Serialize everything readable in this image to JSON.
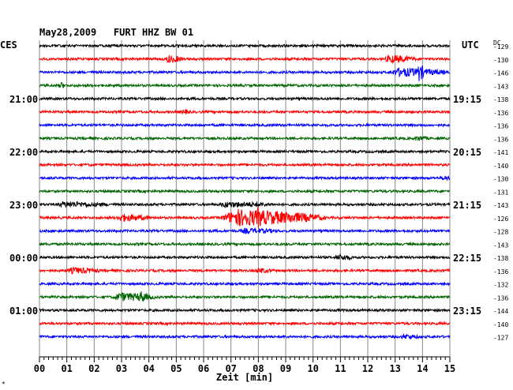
{
  "chart_data": {
    "type": "line",
    "title": "May28,2009   FURT HHZ BW 01",
    "left_axis_label": "CES",
    "right_axis_label": "UTC",
    "right_dc_label": "DC",
    "xlabel": "Zeit [min]",
    "xlim": [
      0,
      15
    ],
    "x_ticks": [
      "00",
      "01",
      "02",
      "03",
      "04",
      "05",
      "06",
      "07",
      "08",
      "09",
      "10",
      "11",
      "12",
      "13",
      "14",
      "15"
    ],
    "colors": [
      "#000000",
      "#ff0000",
      "#0000ff",
      "#006400"
    ],
    "left_time_labels": [
      {
        "trace": 4,
        "label": "21:00"
      },
      {
        "trace": 8,
        "label": "22:00"
      },
      {
        "trace": 12,
        "label": "23:00"
      },
      {
        "trace": 16,
        "label": "00:00"
      },
      {
        "trace": 20,
        "label": "01:00"
      }
    ],
    "right_time_labels": [
      {
        "trace": 4,
        "label": "19:15"
      },
      {
        "trace": 8,
        "label": "20:15"
      },
      {
        "trace": 12,
        "label": "21:15"
      },
      {
        "trace": 16,
        "label": "22:15"
      },
      {
        "trace": 20,
        "label": "23:15"
      }
    ],
    "dc_offsets": [
      "-129",
      "-130",
      "-146",
      "-143",
      "-138",
      "-136",
      "-136",
      "-136",
      "-141",
      "-140",
      "-130",
      "-131",
      "-143",
      "-126",
      "-128",
      "-143",
      "-138",
      "-136",
      "-132",
      "-136",
      "-144",
      "-140",
      "-127"
    ],
    "events": [
      {
        "trace": 1,
        "start_min": 4.6,
        "end_min": 5.3,
        "amplitude": 0.5
      },
      {
        "trace": 1,
        "start_min": 12.6,
        "end_min": 13.8,
        "amplitude": 0.55
      },
      {
        "trace": 2,
        "start_min": 12.8,
        "end_min": 15.0,
        "amplitude": 0.6
      },
      {
        "trace": 2,
        "start_min": 13.8,
        "end_min": 14.1,
        "amplitude": 1.5
      },
      {
        "trace": 3,
        "start_min": 0.7,
        "end_min": 0.95,
        "amplitude": 0.45
      },
      {
        "trace": 5,
        "start_min": 5.2,
        "end_min": 5.5,
        "amplitude": 0.3
      },
      {
        "trace": 7,
        "start_min": 13.7,
        "end_min": 14.2,
        "amplitude": 0.3
      },
      {
        "trace": 10,
        "start_min": 14.7,
        "end_min": 15.0,
        "amplitude": 0.3
      },
      {
        "trace": 12,
        "start_min": 0.6,
        "end_min": 2.6,
        "amplitude": 0.35
      },
      {
        "trace": 12,
        "start_min": 6.5,
        "end_min": 8.6,
        "amplitude": 0.35
      },
      {
        "trace": 13,
        "start_min": 2.8,
        "end_min": 4.1,
        "amplitude": 0.5
      },
      {
        "trace": 13,
        "start_min": 6.6,
        "end_min": 10.5,
        "amplitude": 1.3
      },
      {
        "trace": 13,
        "start_min": 7.9,
        "end_min": 8.3,
        "amplitude": 1.8
      },
      {
        "trace": 14,
        "start_min": 7.3,
        "end_min": 8.8,
        "amplitude": 0.3
      },
      {
        "trace": 16,
        "start_min": 10.8,
        "end_min": 11.5,
        "amplitude": 0.35
      },
      {
        "trace": 17,
        "start_min": 1.0,
        "end_min": 2.2,
        "amplitude": 0.4
      },
      {
        "trace": 17,
        "start_min": 7.9,
        "end_min": 8.5,
        "amplitude": 0.3
      },
      {
        "trace": 19,
        "start_min": 2.7,
        "end_min": 4.3,
        "amplitude": 0.6
      },
      {
        "trace": 19,
        "start_min": 3.6,
        "end_min": 4.0,
        "amplitude": 0.9
      },
      {
        "trace": 22,
        "start_min": 13.2,
        "end_min": 13.9,
        "amplitude": 0.3
      }
    ],
    "corner_mark": "*"
  }
}
